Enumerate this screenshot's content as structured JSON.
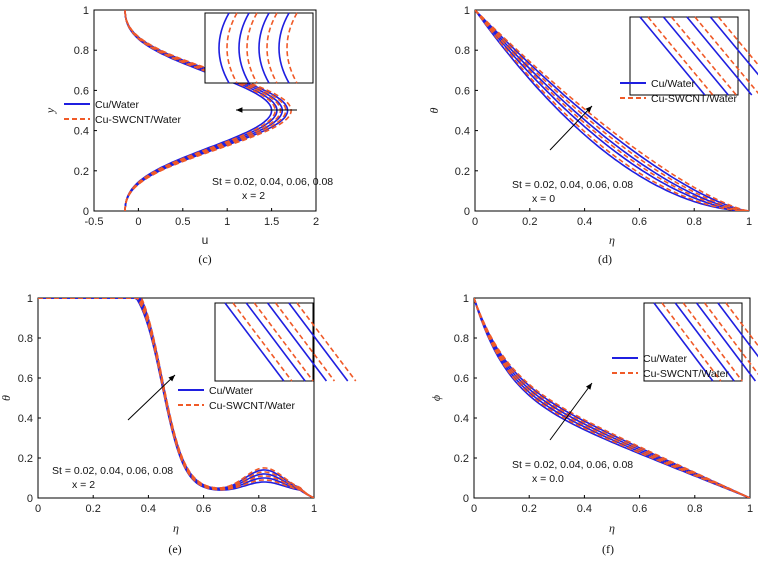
{
  "colors": {
    "cu_water": "#1f1fe0",
    "cu_swcnt_water": "#f05a28",
    "axis": "#000000"
  },
  "chart_data": [
    {
      "id": "c",
      "type": "line",
      "caption": "(c)",
      "xlabel": "u",
      "ylabel": "y",
      "xlim": [
        -0.5,
        2
      ],
      "ylim": [
        0,
        1
      ],
      "xticks": [
        "-0.5",
        "0",
        "0.5",
        "1",
        "1.5",
        "2"
      ],
      "yticks": [
        "0",
        "0.2",
        "0.4",
        "0.6",
        "0.8",
        "1"
      ],
      "legend": [
        "Cu/Water",
        "Cu-SWCNT/Water"
      ],
      "annotation": [
        "St = 0.02, 0.04, 0.06, 0.08",
        "x = 2"
      ],
      "series_blue_peaks": [
        1.5,
        1.56,
        1.62,
        1.68
      ],
      "series_red_peaks": [
        1.54,
        1.6,
        1.66,
        1.72
      ]
    },
    {
      "id": "d",
      "type": "line",
      "caption": "(d)",
      "xlabel": "η",
      "ylabel": "θ",
      "xlim": [
        0,
        1
      ],
      "ylim": [
        0,
        1
      ],
      "xticks": [
        "0",
        "0.2",
        "0.4",
        "0.6",
        "0.8",
        "1"
      ],
      "yticks": [
        "0",
        "0.2",
        "0.4",
        "0.6",
        "0.8",
        "1"
      ],
      "legend": [
        "Cu/Water",
        "Cu-SWCNT/Water"
      ],
      "annotation": [
        "St = 0.02, 0.04, 0.06, 0.08",
        "x = 0"
      ],
      "series_blue_exponents": [
        1.9,
        1.7,
        1.55,
        1.4
      ],
      "series_red_exponents": [
        1.82,
        1.62,
        1.47,
        1.33
      ]
    },
    {
      "id": "e",
      "type": "line",
      "caption": "(e)",
      "xlabel": "η",
      "ylabel": "θ",
      "xlim": [
        0,
        1
      ],
      "ylim": [
        0,
        1
      ],
      "xticks": [
        "0",
        "0.2",
        "0.4",
        "0.6",
        "0.8",
        "1"
      ],
      "yticks": [
        "0",
        "0.2",
        "0.4",
        "0.6",
        "0.8",
        "1"
      ],
      "legend": [
        "Cu/Water",
        "Cu-SWCNT/Water"
      ],
      "annotation": [
        "St = 0.02, 0.04, 0.06, 0.08",
        "x = 2"
      ],
      "series_blue_shift": [
        0.0,
        0.04,
        0.08,
        0.12
      ],
      "series_red_shift": [
        0.02,
        0.06,
        0.1,
        0.14
      ]
    },
    {
      "id": "f",
      "type": "line",
      "caption": "(f)",
      "xlabel": "η",
      "ylabel": "ϕ",
      "xlim": [
        0,
        1
      ],
      "ylim": [
        0,
        1
      ],
      "xticks": [
        "0",
        "0.2",
        "0.4",
        "0.6",
        "0.8",
        "1"
      ],
      "yticks": [
        "0",
        "0.2",
        "0.4",
        "0.6",
        "0.8",
        "1"
      ],
      "legend": [
        "Cu/Water",
        "Cu-SWCNT/Water"
      ],
      "annotation": [
        "St = 0.02, 0.04, 0.06, 0.08",
        "x = 0.0"
      ],
      "series_blue_shift": [
        0.0,
        0.025,
        0.05,
        0.075
      ],
      "series_red_shift": [
        0.012,
        0.037,
        0.062,
        0.087
      ]
    }
  ]
}
